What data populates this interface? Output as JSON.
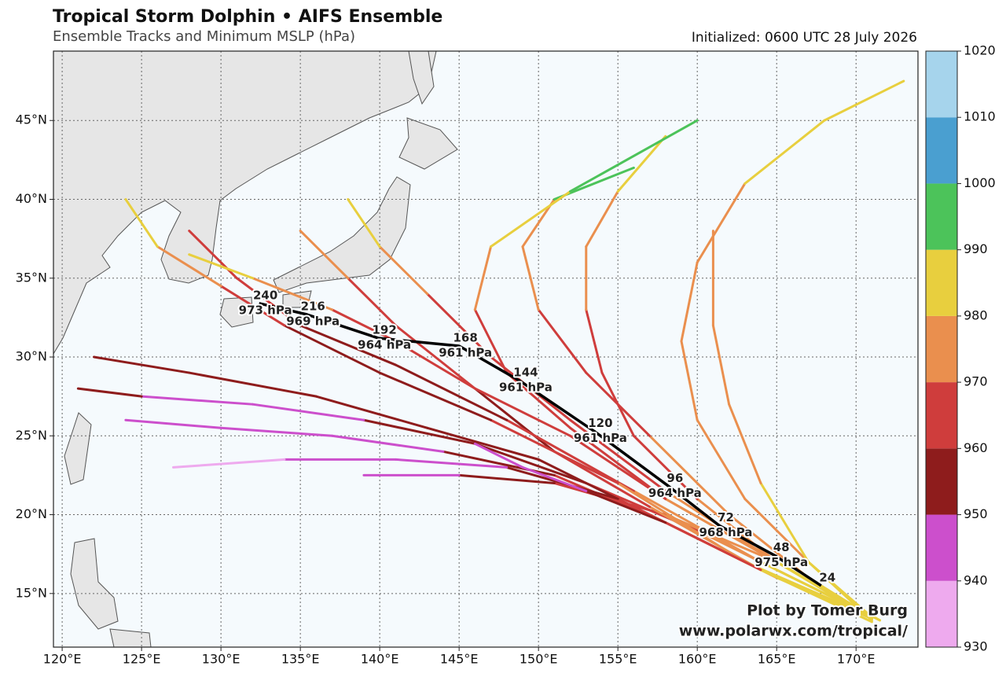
{
  "chart_data": {
    "type": "track-map",
    "title": "Tropical Storm Dolphin • AIFS Ensemble",
    "subtitle": "Ensemble Tracks and Minimum MSLP (hPa)",
    "initialized": "Initialized: 0600 UTC 28 July 2026",
    "credit": [
      "Plot by Tomer Burg",
      "www.polarwx.com/tropical/"
    ],
    "xlim": [
      119.45,
      173.9
    ],
    "ylim": [
      11.6,
      49.4
    ],
    "xticks": [
      {
        "value": 120,
        "label": "120°E"
      },
      {
        "value": 125,
        "label": "125°E"
      },
      {
        "value": 130,
        "label": "130°E"
      },
      {
        "value": 135,
        "label": "135°E"
      },
      {
        "value": 140,
        "label": "140°E"
      },
      {
        "value": 145,
        "label": "145°E"
      },
      {
        "value": 150,
        "label": "150°E"
      },
      {
        "value": 155,
        "label": "155°E"
      },
      {
        "value": 160,
        "label": "160°E"
      },
      {
        "value": 165,
        "label": "165°E"
      },
      {
        "value": 170,
        "label": "170°E"
      }
    ],
    "yticks": [
      {
        "value": 15,
        "label": "15°N"
      },
      {
        "value": 20,
        "label": "20°N"
      },
      {
        "value": 25,
        "label": "25°N"
      },
      {
        "value": 30,
        "label": "30°N"
      },
      {
        "value": 35,
        "label": "35°N"
      },
      {
        "value": 40,
        "label": "40°N"
      },
      {
        "value": 45,
        "label": "45°N"
      }
    ],
    "grid": true,
    "colorbar": {
      "levels": [
        930,
        940,
        950,
        960,
        970,
        980,
        990,
        1000,
        1010,
        1020
      ],
      "colors": [
        "#eeaaee",
        "#cc4fcc",
        "#8e1c1c",
        "#cf3d3c",
        "#ea8f4e",
        "#e8cf3e",
        "#4cc35a",
        "#4a9fd0",
        "#a6d4ec"
      ]
    },
    "tracks": [
      {
        "lon": [
          171.5,
          166,
          160,
          153,
          146,
          139,
          132,
          125,
          121
        ],
        "lat": [
          13.3,
          16,
          19,
          22,
          24.5,
          26,
          27,
          27.5,
          28
        ],
        "mslp": [
          985,
          975,
          965,
          958,
          952,
          948,
          946,
          950,
          968
        ]
      },
      {
        "lon": [
          171,
          165,
          158,
          151,
          144,
          137,
          130,
          124
        ],
        "lat": [
          13.5,
          16,
          19.5,
          22.5,
          24,
          25,
          25.5,
          26
        ],
        "mslp": [
          985,
          972,
          962,
          955,
          948,
          945,
          943,
          948
        ]
      },
      {
        "lon": [
          171,
          164,
          157,
          150,
          143,
          136,
          128,
          122
        ],
        "lat": [
          13.2,
          16.5,
          20,
          23.5,
          25.5,
          27.5,
          29,
          30
        ],
        "mslp": [
          984,
          970,
          958,
          952,
          955,
          957,
          958,
          962
        ]
      },
      {
        "lon": [
          171,
          163,
          155,
          148,
          141,
          134,
          127
        ],
        "lat": [
          13.5,
          17,
          21,
          23,
          23.5,
          23.5,
          23
        ],
        "mslp": [
          985,
          968,
          955,
          948,
          942,
          938,
          945
        ]
      },
      {
        "lon": [
          171.5,
          165,
          158,
          151,
          145,
          139
        ],
        "lat": [
          13.3,
          17,
          20,
          22,
          22.5,
          22.5
        ],
        "mslp": [
          986,
          970,
          960,
          952,
          948,
          950
        ]
      },
      {
        "lon": [
          171,
          165,
          160,
          156,
          154,
          153,
          153,
          155,
          158
        ],
        "lat": [
          13.5,
          17,
          21,
          25,
          29,
          33,
          37,
          40.5,
          44
        ],
        "mslp": [
          985,
          972,
          965,
          963,
          965,
          970,
          978,
          985,
          992
        ]
      },
      {
        "lon": [
          171,
          167,
          163,
          160,
          159,
          160,
          163,
          168,
          173
        ],
        "lat": [
          13.5,
          17,
          21,
          26,
          31,
          36,
          41,
          45,
          47.5
        ],
        "mslp": [
          986,
          978,
          972,
          970,
          972,
          978,
          983,
          987,
          990
        ]
      },
      {
        "lon": [
          171,
          167,
          164,
          162,
          161,
          161
        ],
        "lat": [
          13.3,
          17,
          22,
          27,
          32,
          38
        ],
        "mslp": [
          986,
          980,
          975,
          974,
          976,
          980
        ]
      },
      {
        "lon": [
          171,
          164,
          157,
          151,
          146,
          141,
          138,
          135
        ],
        "lat": [
          13.4,
          16.5,
          20.5,
          24,
          28,
          32,
          35,
          38
        ],
        "mslp": [
          985,
          972,
          962,
          958,
          960,
          965,
          975,
          990
        ]
      },
      {
        "lon": [
          171,
          164,
          156,
          148,
          141,
          135,
          131,
          128
        ],
        "lat": [
          13.5,
          17,
          21.5,
          26,
          29.5,
          32,
          35,
          38
        ],
        "mslp": [
          985,
          970,
          960,
          955,
          958,
          962,
          968,
          980
        ]
      },
      {
        "lon": [
          171,
          163,
          155,
          147,
          140,
          134,
          130,
          126,
          124
        ],
        "lat": [
          13.4,
          17,
          22,
          26,
          29,
          32,
          34.5,
          37,
          40
        ],
        "mslp": [
          985,
          970,
          960,
          955,
          958,
          963,
          970,
          985,
          992
        ]
      },
      {
        "lon": [
          171,
          165,
          158,
          152,
          147,
          143,
          140,
          138
        ],
        "lat": [
          13.5,
          17,
          21.5,
          26,
          30,
          34,
          37,
          40
        ],
        "mslp": [
          985,
          975,
          965,
          962,
          965,
          972,
          985,
          992
        ]
      },
      {
        "lon": [
          171,
          167,
          162,
          157,
          153,
          150,
          149,
          151,
          156
        ],
        "lat": [
          13.5,
          16,
          20,
          25,
          29,
          33,
          37,
          40,
          42
        ],
        "mslp": [
          985,
          978,
          970,
          966,
          966,
          970,
          978,
          990,
          1002
        ]
      },
      {
        "lon": [
          171,
          165,
          158,
          152,
          146,
          141,
          137,
          132,
          128
        ],
        "lat": [
          13.4,
          17,
          21,
          25,
          28,
          31,
          33,
          35,
          36.5
        ],
        "mslp": [
          985,
          975,
          968,
          964,
          963,
          966,
          972,
          980,
          988
        ]
      },
      {
        "lon": [
          171,
          165,
          158,
          152,
          148,
          146,
          147,
          152,
          160
        ],
        "lat": [
          13.4,
          17,
          21,
          25.5,
          29,
          33,
          37,
          40.5,
          45
        ],
        "mslp": [
          985,
          975,
          967,
          964,
          966,
          974,
          982,
          990,
          1000
        ]
      },
      {
        "lon": [
          171,
          164,
          158,
          153,
          149,
          146
        ],
        "lat": [
          13.4,
          16.5,
          19.5,
          21.5,
          23,
          24.5
        ],
        "mslp": [
          985,
          965,
          955,
          945,
          940,
          935
        ]
      }
    ],
    "ensemble_mean": {
      "hours": [
        24,
        48,
        72,
        96,
        120,
        144,
        168,
        192,
        216,
        240
      ],
      "lon": [
        167.8,
        164.9,
        161.4,
        158.2,
        153.5,
        148.8,
        145.0,
        139.9,
        135.4,
        132.4
      ],
      "lat": [
        15.5,
        17.4,
        19.3,
        21.8,
        25.3,
        28.5,
        30.7,
        31.2,
        32.7,
        33.4
      ],
      "mslp_labels": [
        null,
        "975 hPa",
        "968 hPa",
        "964 hPa",
        "961 hPa",
        "961 hPa",
        "961 hPa",
        "964 hPa",
        "969 hPa",
        "973 hPa"
      ]
    }
  }
}
